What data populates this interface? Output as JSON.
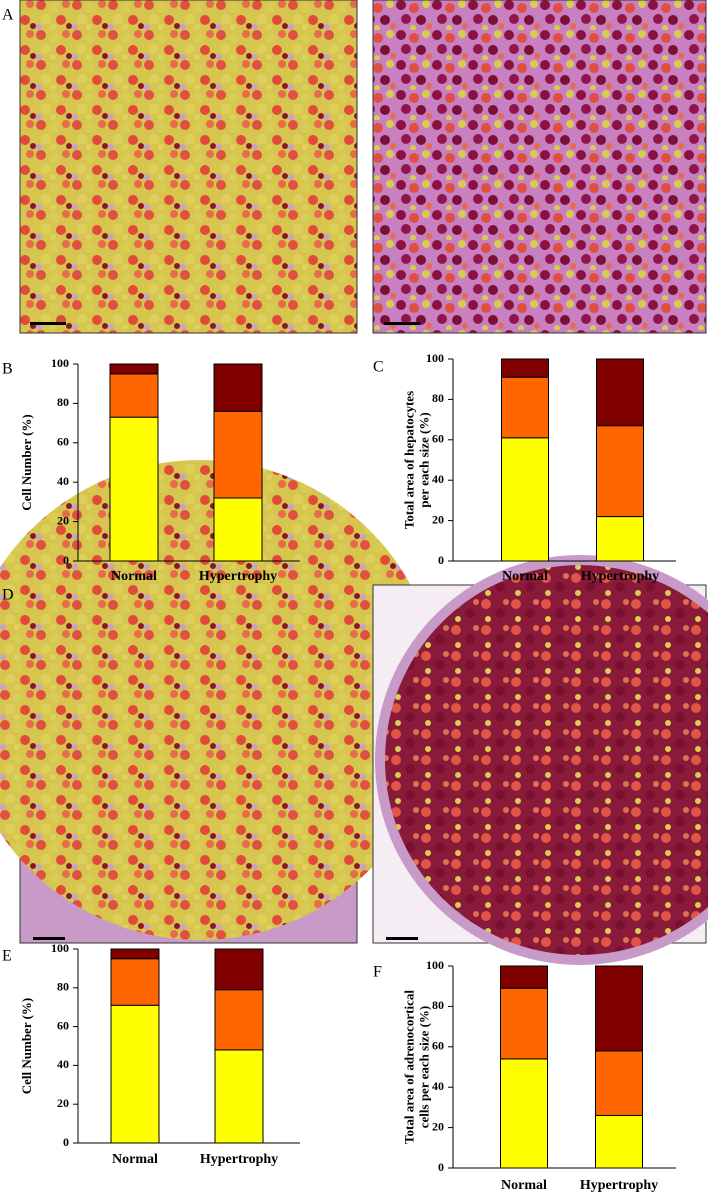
{
  "image_panels": [
    {
      "label": "A"
    },
    {
      "label": "D"
    }
  ],
  "chart_data": [
    {
      "type": "stacked-bar",
      "panel": "B",
      "ylabel": [
        "Cell Number (%)"
      ],
      "categories": [
        "Normal",
        "Hypertrophy"
      ],
      "series": [
        {
          "color": "#ffff00",
          "values": [
            73,
            32
          ]
        },
        {
          "color": "#ff6600",
          "values": [
            22,
            44
          ]
        },
        {
          "color": "#800000",
          "values": [
            5,
            24
          ]
        }
      ],
      "ylim": [
        0,
        100
      ],
      "yticks": [
        0,
        20,
        40,
        60,
        80,
        100
      ]
    },
    {
      "type": "stacked-bar",
      "panel": "C",
      "ylabel": [
        "Total area of hepatocytes",
        "per each size (%)"
      ],
      "categories": [
        "Normal",
        "Hypertrophy"
      ],
      "series": [
        {
          "color": "#ffff00",
          "values": [
            61,
            22
          ]
        },
        {
          "color": "#ff6600",
          "values": [
            30,
            45
          ]
        },
        {
          "color": "#800000",
          "values": [
            9,
            33
          ]
        }
      ],
      "ylim": [
        0,
        100
      ],
      "yticks": [
        0,
        20,
        40,
        60,
        80,
        100
      ]
    },
    {
      "type": "stacked-bar",
      "panel": "E",
      "ylabel": [
        "Cell Number (%)"
      ],
      "categories": [
        "Normal",
        "Hypertrophy"
      ],
      "series": [
        {
          "color": "#ffff00",
          "values": [
            71,
            48
          ]
        },
        {
          "color": "#ff6600",
          "values": [
            24,
            31
          ]
        },
        {
          "color": "#800000",
          "values": [
            5,
            21
          ]
        }
      ],
      "ylim": [
        0,
        100
      ],
      "yticks": [
        0,
        20,
        40,
        60,
        80,
        100
      ]
    },
    {
      "type": "stacked-bar",
      "panel": "F",
      "ylabel": [
        "Total area of adrenocortical",
        "cells per each size (%)"
      ],
      "categories": [
        "Normal",
        "Hypertrophy"
      ],
      "series": [
        {
          "color": "#ffff00",
          "values": [
            54,
            26
          ]
        },
        {
          "color": "#ff6600",
          "values": [
            35,
            32
          ]
        },
        {
          "color": "#800000",
          "values": [
            11,
            42
          ]
        }
      ],
      "ylim": [
        0,
        100
      ],
      "yticks": [
        0,
        20,
        40,
        60,
        80,
        100
      ]
    }
  ]
}
